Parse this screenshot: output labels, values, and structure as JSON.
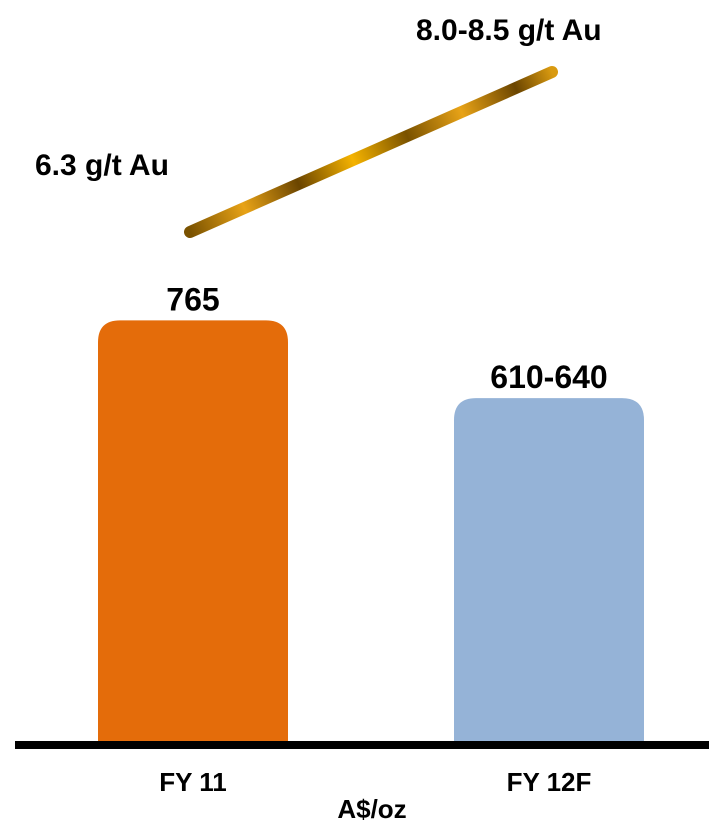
{
  "chart_data": {
    "type": "bar",
    "categories": [
      "FY 11",
      "FY 12F"
    ],
    "values": [
      765,
      625
    ],
    "value_labels": [
      "765",
      "610-640"
    ],
    "xlabel": "A$/oz",
    "ylabel": "",
    "ylim": [
      0,
      1000
    ],
    "grid": false,
    "legend": "none",
    "bar_colors": [
      "#E46C0A",
      "#95B3D7"
    ],
    "annotations": {
      "grade_start": "6.3 g/t Au",
      "grade_end": "8.0-8.5 g/t Au",
      "trend_color": "#C08A0A"
    }
  }
}
